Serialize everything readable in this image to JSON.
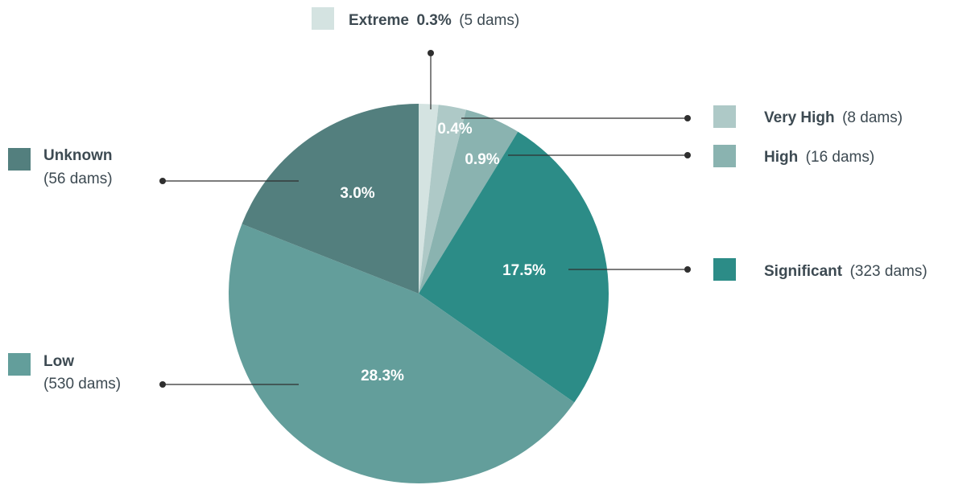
{
  "chart_data": {
    "type": "pie",
    "title": "",
    "legend": "around-pie",
    "slices": [
      {
        "category": "Extreme",
        "percent": 0.3,
        "count_label": "(5 dams)",
        "percent_label": "0.3%",
        "color": "#d4e3e1"
      },
      {
        "category": "Very High",
        "percent": 0.4,
        "count_label": "(8 dams)",
        "percent_label": "0.4%",
        "color": "#aec9c7"
      },
      {
        "category": "High",
        "percent": 0.9,
        "count_label": "(16 dams)",
        "percent_label": "0.9%",
        "color": "#8ab3b0"
      },
      {
        "category": "Significant",
        "percent": 17.5,
        "count_label": "(323 dams)",
        "percent_label": "17.5%",
        "color": "#2c8c87"
      },
      {
        "category": "Low",
        "percent": 28.3,
        "count_label": "(530 dams)",
        "percent_label": "28.3%",
        "color": "#639e9b"
      },
      {
        "category": "Unknown",
        "percent": 3.0,
        "count_label": "(56 dams)",
        "percent_label": "3.0%",
        "color": "#537f7e"
      }
    ]
  }
}
